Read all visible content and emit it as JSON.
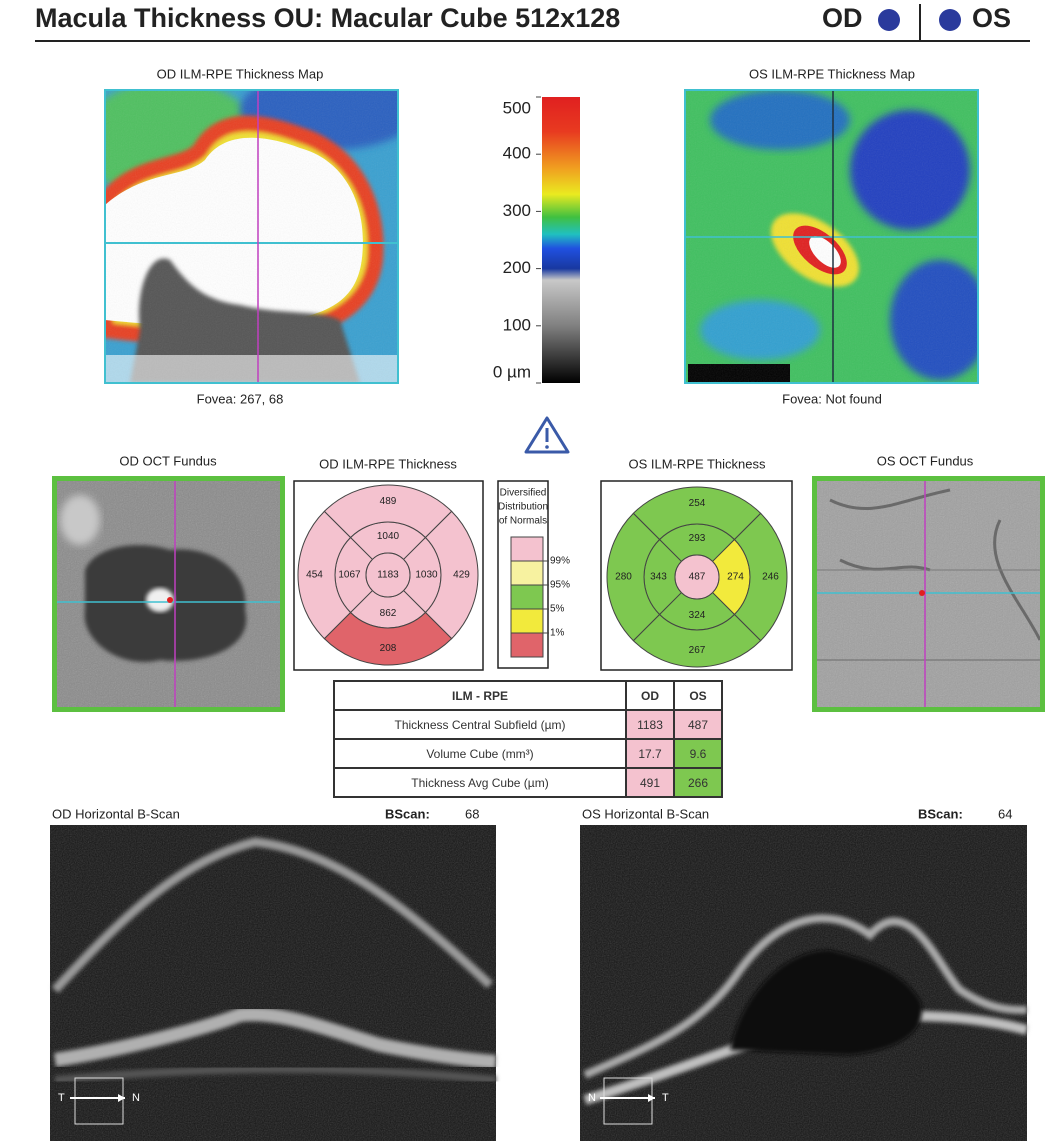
{
  "header": {
    "title": "Macula Thickness OU: Macular Cube 512x128",
    "od": "OD",
    "os": "OS"
  },
  "od_map": {
    "title": "OD ILM-RPE Thickness Map",
    "fovea": "Fovea: 267, 68"
  },
  "os_map": {
    "title": "OS ILM-RPE Thickness Map",
    "fovea": "Fovea: Not found"
  },
  "color_scale": {
    "lim": [
      0,
      500
    ],
    "ticks": [
      500,
      400,
      300,
      200,
      100,
      {
        "value": 0,
        "label": "0 µm"
      }
    ]
  },
  "od_fundus": {
    "title": "OD OCT Fundus"
  },
  "os_fundus": {
    "title": "OS OCT Fundus"
  },
  "od_thickness": {
    "title": "OD ILM-RPE Thickness",
    "sectors": [
      {
        "value": "1183",
        "color": "#f4c2cf"
      },
      {
        "value": "1040",
        "color": "#f4c2cf"
      },
      {
        "value": "1030",
        "color": "#f4c2cf"
      },
      {
        "value": "862",
        "color": "#f4c2cf"
      },
      {
        "value": "1067",
        "color": "#f4c2cf"
      },
      {
        "value": "489",
        "color": "#f4c2cf"
      },
      {
        "value": "429",
        "color": "#f4c2cf"
      },
      {
        "value": "208",
        "color": "#e0646a"
      },
      {
        "value": "454",
        "color": "#f4c2cf"
      }
    ]
  },
  "os_thickness": {
    "title": "OS ILM-RPE Thickness",
    "sectors": [
      {
        "value": "487",
        "color": "#f4c2cf"
      },
      {
        "value": "293",
        "color": "#7ec850"
      },
      {
        "value": "274",
        "color": "#f2ea3c"
      },
      {
        "value": "324",
        "color": "#7ec850"
      },
      {
        "value": "343",
        "color": "#7ec850"
      },
      {
        "value": "254",
        "color": "#7ec850"
      },
      {
        "value": "246",
        "color": "#7ec850"
      },
      {
        "value": "267",
        "color": "#7ec850"
      },
      {
        "value": "280",
        "color": "#7ec850"
      }
    ]
  },
  "normals_legend": {
    "title": [
      "Diversified",
      "Distribution",
      "of Normals"
    ],
    "colors": [
      "#f4c2cf",
      "#f7f2a0",
      "#7ec850",
      "#f2ea3c",
      "#e0646a"
    ],
    "labels": [
      "99%",
      "95%",
      "5%",
      "1%"
    ]
  },
  "table": {
    "header": [
      "ILM - RPE",
      "OD",
      "OS"
    ],
    "rows": [
      [
        "Thickness Central Subfield (µm)",
        "1183",
        "487"
      ],
      [
        "Volume Cube (mm³)",
        "17.7",
        "9.6"
      ],
      [
        "Thickness Avg Cube (µm)",
        "491",
        "266"
      ]
    ],
    "cell_colors": [
      [
        "#f4c2cf",
        "#f4c2cf"
      ],
      [
        "#f4c2cf",
        "#7ec850"
      ],
      [
        "#f4c2cf",
        "#7ec850"
      ]
    ]
  },
  "od_bscan": {
    "title": "OD Horizontal B-Scan",
    "bscan_label": "BScan:",
    "bscan_value": "68",
    "left": "T",
    "right": "N"
  },
  "os_bscan": {
    "title": "OS Horizontal B-Scan",
    "bscan_label": "BScan:",
    "bscan_value": "64",
    "left": "N",
    "right": "T"
  }
}
